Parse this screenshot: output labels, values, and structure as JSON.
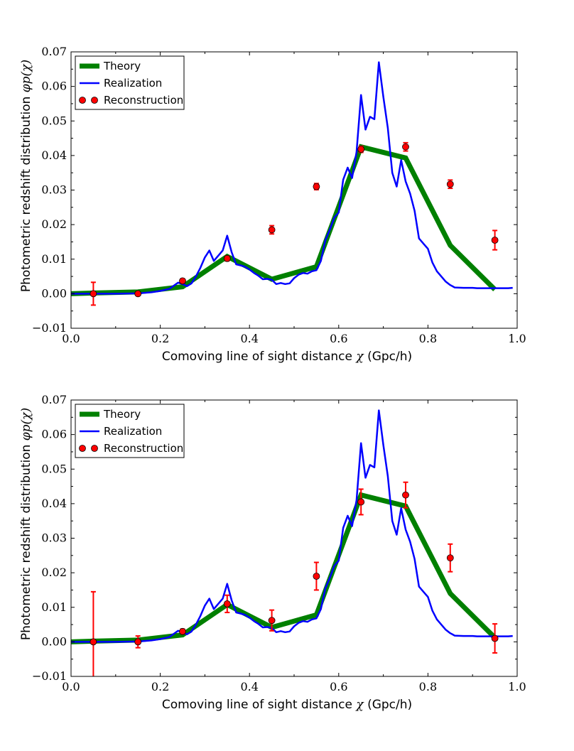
{
  "chart_data": [
    {
      "type": "line",
      "panel": "top",
      "xlabel": "Comoving line of sight distance",
      "xlabel_symbol": "χ",
      "xlabel_unit": "(Gpc/h)",
      "ylabel": "Photometric redshift distribution",
      "ylabel_symbol": "φp(χ)",
      "xlim": [
        0.0,
        1.0
      ],
      "ylim": [
        -0.01,
        0.07
      ],
      "xticks": [
        "0.0",
        "0.2",
        "0.4",
        "0.6",
        "0.8",
        "1.0"
      ],
      "yticks": [
        "−0.01",
        "0.00",
        "0.01",
        "0.02",
        "0.03",
        "0.04",
        "0.05",
        "0.06",
        "0.07"
      ],
      "legend": {
        "position": "top-left",
        "entries": [
          "Theory",
          "Realization",
          "Reconstruction"
        ]
      },
      "series": [
        {
          "name": "Theory",
          "color": "#008000",
          "x": [
            0.0,
            0.05,
            0.15,
            0.25,
            0.35,
            0.45,
            0.55,
            0.65,
            0.75,
            0.85,
            0.95
          ],
          "values": [
            0.0,
            0.0002,
            0.0005,
            0.002,
            0.0108,
            0.0042,
            0.0078,
            0.0425,
            0.0393,
            0.014,
            0.0012
          ]
        },
        {
          "name": "Realization",
          "color": "#0000ff",
          "x": [
            0.0,
            0.05,
            0.1,
            0.15,
            0.18,
            0.2,
            0.22,
            0.24,
            0.25,
            0.26,
            0.27,
            0.28,
            0.29,
            0.3,
            0.31,
            0.32,
            0.33,
            0.34,
            0.35,
            0.36,
            0.37,
            0.38,
            0.39,
            0.4,
            0.41,
            0.42,
            0.43,
            0.44,
            0.45,
            0.46,
            0.47,
            0.48,
            0.49,
            0.5,
            0.51,
            0.52,
            0.53,
            0.54,
            0.55,
            0.56,
            0.57,
            0.58,
            0.59,
            0.6,
            0.61,
            0.62,
            0.63,
            0.64,
            0.65,
            0.66,
            0.67,
            0.68,
            0.69,
            0.7,
            0.71,
            0.72,
            0.73,
            0.74,
            0.75,
            0.76,
            0.77,
            0.78,
            0.79,
            0.8,
            0.81,
            0.82,
            0.83,
            0.84,
            0.85,
            0.86,
            0.88,
            0.9,
            0.91,
            0.92,
            0.94,
            0.96,
            0.98,
            0.99
          ],
          "values": [
            0.0,
            0.0,
            0.0,
            0.0001,
            0.0004,
            0.0008,
            0.0014,
            0.0032,
            0.0028,
            0.0022,
            0.003,
            0.005,
            0.0075,
            0.0105,
            0.0125,
            0.0095,
            0.011,
            0.0125,
            0.0168,
            0.012,
            0.0085,
            0.0082,
            0.0078,
            0.007,
            0.006,
            0.0052,
            0.0042,
            0.0043,
            0.004,
            0.0028,
            0.0031,
            0.0028,
            0.003,
            0.0045,
            0.0055,
            0.006,
            0.0058,
            0.0065,
            0.0068,
            0.0095,
            0.0155,
            0.0185,
            0.022,
            0.0235,
            0.033,
            0.0365,
            0.0335,
            0.041,
            0.0575,
            0.0475,
            0.0512,
            0.0505,
            0.067,
            0.057,
            0.048,
            0.035,
            0.031,
            0.0387,
            0.0325,
            0.029,
            0.024,
            0.016,
            0.0145,
            0.013,
            0.009,
            0.0065,
            0.005,
            0.0035,
            0.0025,
            0.0018,
            0.0017,
            0.0017,
            0.0016,
            0.0016,
            0.0016,
            0.0016,
            0.0016,
            0.0017
          ],
          "values_note": "x and values arrays aligned to realization curve"
        },
        {
          "name": "Reconstruction",
          "color": "#ff0000",
          "x": [
            0.05,
            0.15,
            0.25,
            0.35,
            0.45,
            0.55,
            0.65,
            0.75,
            0.85,
            0.95
          ],
          "values": [
            0.0,
            0.0,
            0.0037,
            0.0102,
            0.0185,
            0.031,
            0.0418,
            0.0425,
            0.0317,
            0.0155
          ],
          "errors": [
            0.0033,
            0.0003,
            0.0006,
            0.0007,
            0.0012,
            0.0009,
            0.0009,
            0.0012,
            0.0012,
            0.0028
          ]
        }
      ]
    },
    {
      "type": "line",
      "panel": "bottom",
      "xlabel": "Comoving line of sight distance",
      "xlabel_symbol": "χ",
      "xlabel_unit": "(Gpc/h)",
      "ylabel": "Photometric redshift distribution",
      "ylabel_symbol": "φp(χ)",
      "xlim": [
        0.0,
        1.0
      ],
      "ylim": [
        -0.01,
        0.07
      ],
      "xticks": [
        "0.0",
        "0.2",
        "0.4",
        "0.6",
        "0.8",
        "1.0"
      ],
      "yticks": [
        "−0.01",
        "0.00",
        "0.01",
        "0.02",
        "0.03",
        "0.04",
        "0.05",
        "0.06",
        "0.07"
      ],
      "legend": {
        "position": "top-left",
        "entries": [
          "Theory",
          "Realization",
          "Reconstruction"
        ]
      },
      "series": [
        {
          "name": "Theory",
          "color": "#008000",
          "x": [
            0.0,
            0.05,
            0.15,
            0.25,
            0.35,
            0.45,
            0.55,
            0.65,
            0.75,
            0.85,
            0.95
          ],
          "values": [
            0.0,
            0.0002,
            0.0005,
            0.002,
            0.0108,
            0.0042,
            0.0078,
            0.0425,
            0.0393,
            0.014,
            0.0012
          ]
        },
        {
          "name": "Realization",
          "color": "#0000ff",
          "x": [
            0.0,
            0.05,
            0.1,
            0.15,
            0.18,
            0.2,
            0.22,
            0.24,
            0.25,
            0.26,
            0.27,
            0.28,
            0.29,
            0.3,
            0.31,
            0.32,
            0.33,
            0.34,
            0.35,
            0.36,
            0.37,
            0.38,
            0.39,
            0.4,
            0.41,
            0.42,
            0.43,
            0.44,
            0.45,
            0.46,
            0.47,
            0.48,
            0.49,
            0.5,
            0.51,
            0.52,
            0.53,
            0.54,
            0.55,
            0.56,
            0.57,
            0.58,
            0.59,
            0.6,
            0.61,
            0.62,
            0.63,
            0.64,
            0.65,
            0.66,
            0.67,
            0.68,
            0.69,
            0.7,
            0.71,
            0.72,
            0.73,
            0.74,
            0.75,
            0.76,
            0.77,
            0.78,
            0.79,
            0.8,
            0.81,
            0.82,
            0.83,
            0.84,
            0.85,
            0.86,
            0.88,
            0.9,
            0.91,
            0.92,
            0.94,
            0.96,
            0.98,
            0.99
          ],
          "values": [
            0.0,
            0.0,
            0.0,
            0.0001,
            0.0004,
            0.0008,
            0.0014,
            0.0032,
            0.0028,
            0.0022,
            0.003,
            0.005,
            0.0075,
            0.0105,
            0.0125,
            0.0095,
            0.011,
            0.0125,
            0.0168,
            0.012,
            0.0085,
            0.0082,
            0.0078,
            0.007,
            0.006,
            0.0052,
            0.0042,
            0.0043,
            0.004,
            0.0028,
            0.0031,
            0.0028,
            0.003,
            0.0045,
            0.0055,
            0.006,
            0.0058,
            0.0065,
            0.0068,
            0.0095,
            0.0155,
            0.0185,
            0.022,
            0.0235,
            0.033,
            0.0365,
            0.0335,
            0.041,
            0.0575,
            0.0475,
            0.0512,
            0.0505,
            0.067,
            0.057,
            0.048,
            0.035,
            0.031,
            0.0387,
            0.0325,
            0.029,
            0.024,
            0.016,
            0.0145,
            0.013,
            0.009,
            0.0065,
            0.005,
            0.0035,
            0.0025,
            0.0018,
            0.0017,
            0.0017,
            0.0016,
            0.0016,
            0.0016,
            0.0016,
            0.0016,
            0.0017
          ]
        },
        {
          "name": "Reconstruction",
          "color": "#ff0000",
          "x": [
            0.05,
            0.15,
            0.25,
            0.35,
            0.45,
            0.55,
            0.65,
            0.75,
            0.85,
            0.95
          ],
          "values": [
            0.0,
            0.0,
            0.003,
            0.011,
            0.0062,
            0.019,
            0.0405,
            0.0425,
            0.0243,
            0.001
          ],
          "errors": [
            0.0145,
            0.0017,
            0.0007,
            0.0025,
            0.003,
            0.004,
            0.0037,
            0.0037,
            0.004,
            0.0042
          ]
        }
      ]
    }
  ]
}
